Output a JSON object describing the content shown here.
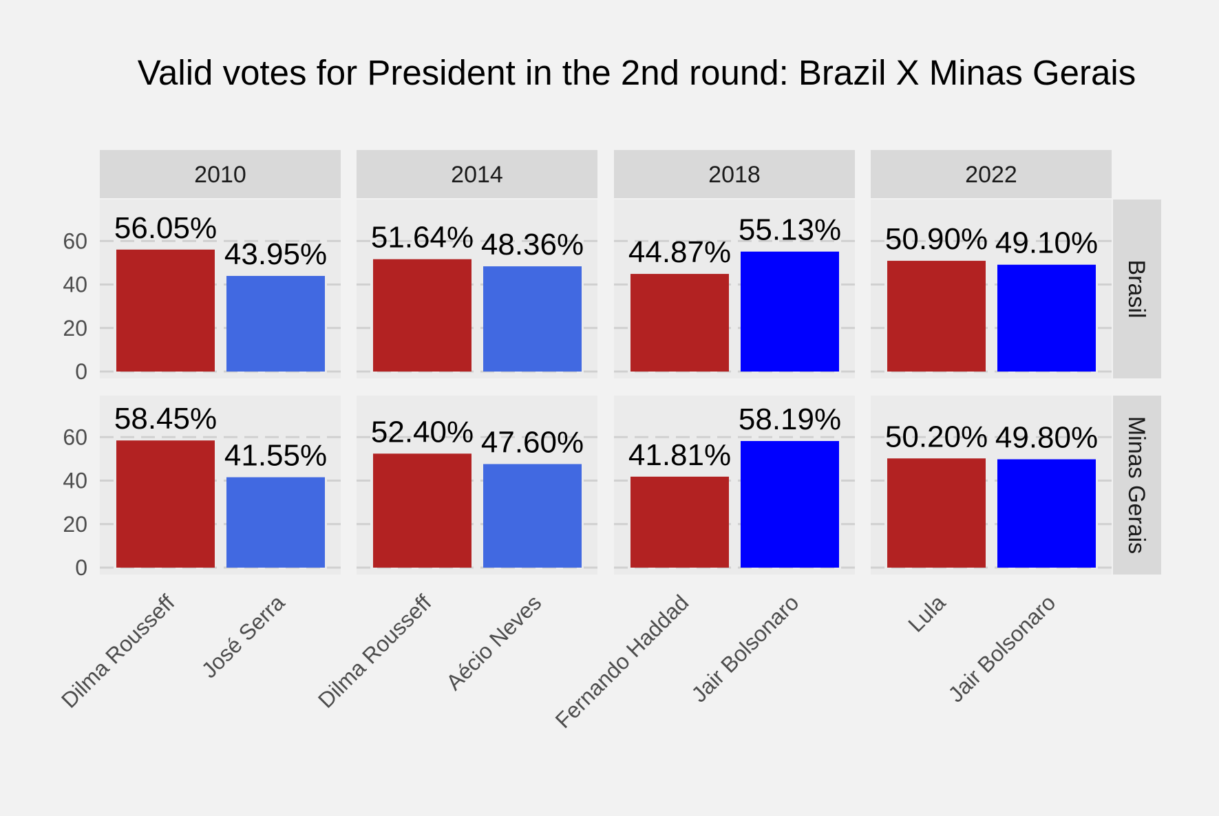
{
  "chart_data": {
    "type": "bar",
    "title": "Valid votes for President in the 2nd round: Brazil X Minas Gerais",
    "xlabel": "",
    "ylabel": "",
    "ylim": [
      0,
      78
    ],
    "yticks": [
      "0",
      "20",
      "40",
      "60"
    ],
    "grid": true,
    "columns": [
      "2010",
      "2014",
      "2018",
      "2022"
    ],
    "rows": [
      "Brasil",
      "Minas Gerais"
    ],
    "categories": [
      [
        "Dilma Rousseff",
        "José Serra"
      ],
      [
        "Dilma Rousseff",
        "Aécio Neves"
      ],
      [
        "Fernando Haddad",
        "Jair Bolsonaro"
      ],
      [
        "Lula",
        "Jair Bolsonaro"
      ]
    ],
    "colors": [
      [
        "#b22222",
        "#4169e1"
      ],
      [
        "#b22222",
        "#4169e1"
      ],
      [
        "#b22222",
        "#0000ff"
      ],
      [
        "#b22222",
        "#0000ff"
      ]
    ],
    "panels": [
      {
        "year": "2010",
        "region": "Brasil",
        "values": [
          56.05,
          43.95
        ],
        "labels": [
          "56.05%",
          "43.95%"
        ]
      },
      {
        "year": "2014",
        "region": "Brasil",
        "values": [
          51.64,
          48.36
        ],
        "labels": [
          "51.64%",
          "48.36%"
        ]
      },
      {
        "year": "2018",
        "region": "Brasil",
        "values": [
          44.87,
          55.13
        ],
        "labels": [
          "44.87%",
          "55.13%"
        ]
      },
      {
        "year": "2022",
        "region": "Brasil",
        "values": [
          50.9,
          49.1
        ],
        "labels": [
          "50.90%",
          "49.10%"
        ]
      },
      {
        "year": "2010",
        "region": "Minas Gerais",
        "values": [
          58.45,
          41.55
        ],
        "labels": [
          "58.45%",
          "41.55%"
        ]
      },
      {
        "year": "2014",
        "region": "Minas Gerais",
        "values": [
          52.4,
          47.6
        ],
        "labels": [
          "52.40%",
          "47.60%"
        ]
      },
      {
        "year": "2018",
        "region": "Minas Gerais",
        "values": [
          41.81,
          58.19
        ],
        "labels": [
          "41.81%",
          "58.19%"
        ]
      },
      {
        "year": "2022",
        "region": "Minas Gerais",
        "values": [
          50.2,
          49.8
        ],
        "labels": [
          "50.20%",
          "49.80%"
        ]
      }
    ]
  },
  "colors": {
    "background": "#f2f2f2",
    "panel": "#ebebeb",
    "strip": "#d9d9d9",
    "grid": "#d0d0d0"
  }
}
